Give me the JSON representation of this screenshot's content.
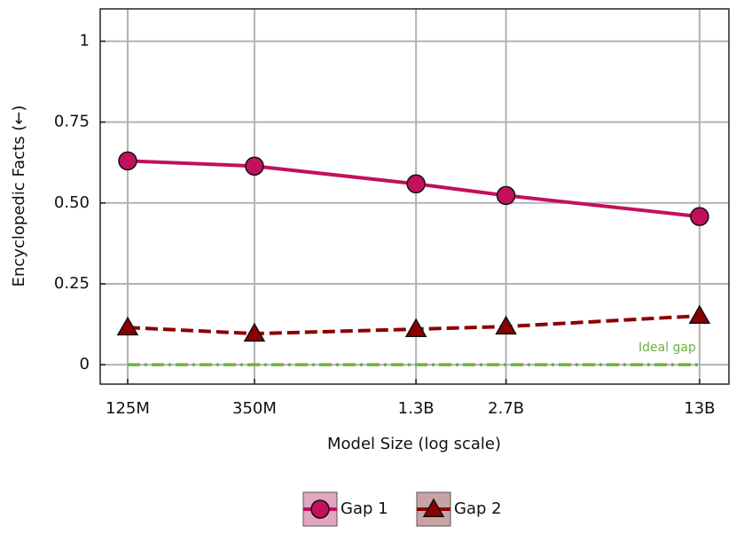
{
  "chart_data": {
    "type": "line",
    "x_label": "Model Size (log scale)",
    "y_label": "Encyclopedic Facts (←)",
    "x": [
      125000000,
      350000000,
      1300000000,
      2700000000,
      13000000000
    ],
    "series": [
      {
        "name": "Gap 1",
        "color": "#c2105c",
        "legend_fill": "#e2a6c0",
        "marker": "circle",
        "line_style": "solid",
        "values": [
          0.63,
          0.614,
          0.559,
          0.523,
          0.458
        ]
      },
      {
        "name": "Gap 2",
        "color": "#8b0000",
        "legend_fill": "#c9a3a3",
        "marker": "triangle",
        "line_style": "dashed",
        "values": [
          0.115,
          0.096,
          0.11,
          0.118,
          0.151
        ]
      }
    ],
    "reference_line": {
      "value": 0,
      "label": "Ideal gap",
      "color": "#6db33f"
    },
    "xscale": "log",
    "xlim": [
      100000000,
      16500000000
    ],
    "xticks": [
      {
        "value": 125000000,
        "label": "125M"
      },
      {
        "value": 350000000,
        "label": "350M"
      },
      {
        "value": 1300000000,
        "label": "1.3B"
      },
      {
        "value": 2700000000,
        "label": "2.7B"
      },
      {
        "value": 13000000000,
        "label": "13B"
      }
    ],
    "ylim": [
      -0.06,
      1.1
    ],
    "yticks": [
      0,
      0.25,
      {
        "value": 0.5,
        "label": "0.50"
      },
      0.75,
      1
    ],
    "grid": true,
    "legend": "bottom"
  }
}
